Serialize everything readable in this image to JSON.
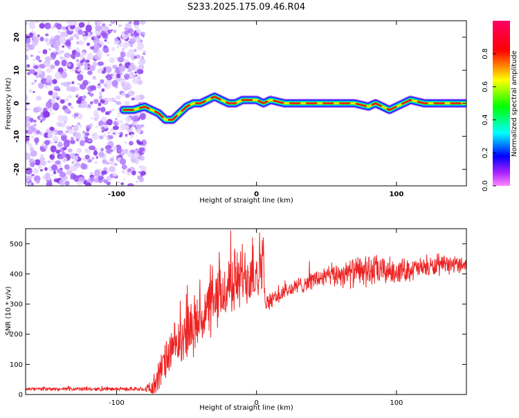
{
  "title": "S233.2025.175.09.46.R04",
  "chart_data": [
    {
      "type": "heatmap",
      "xlabel": "Height of straight line (km)",
      "ylabel": "Frequency (Hz)",
      "xlim": [
        -165,
        150
      ],
      "ylim": [
        -25,
        25
      ],
      "xticks": [
        -100,
        0,
        100
      ],
      "yticks": [
        -20,
        -10,
        0,
        10,
        20
      ],
      "colorbar": {
        "label": "Normalized spectral amplitude",
        "range": [
          0,
          1
        ],
        "ticks": [
          0.0,
          0.2,
          0.4,
          0.6,
          0.8
        ],
        "colors": [
          "#ff00ff",
          "#0000ff",
          "#00ffff",
          "#00ff00",
          "#ffff00",
          "#ff0000",
          "#ff0066"
        ]
      },
      "noise_region_x": [
        -165,
        -80
      ],
      "carrier_track": {
        "x": [
          -95,
          -88,
          -80,
          -75,
          -70,
          -65,
          -60,
          -55,
          -50,
          -45,
          -40,
          -35,
          -30,
          -25,
          -20,
          -15,
          -10,
          -5,
          0,
          5,
          10,
          20,
          30,
          40,
          50,
          60,
          70,
          80,
          85,
          90,
          95,
          100,
          105,
          110,
          120,
          130,
          140,
          150
        ],
        "y": [
          -2,
          -2,
          -1,
          -2,
          -3,
          -5,
          -5,
          -3,
          -1,
          0,
          0,
          1,
          2,
          1,
          0,
          0,
          1,
          1,
          1,
          0,
          1,
          0,
          0,
          0,
          0,
          0,
          0,
          -1,
          0,
          -1,
          -2,
          -1,
          0,
          1,
          0,
          0,
          0,
          0
        ]
      }
    },
    {
      "type": "line",
      "xlabel": "Height of straight line (km)",
      "ylabel": "SNR (10 * v/v)",
      "xlim": [
        -165,
        150
      ],
      "ylim": [
        0,
        550
      ],
      "xticks": [
        -100,
        0,
        100
      ],
      "yticks": [
        0,
        100,
        200,
        300,
        400,
        500
      ],
      "series_color": "#ee2222",
      "envelope": {
        "x": [
          -165,
          -140,
          -110,
          -85,
          -75,
          -70,
          -65,
          -60,
          -55,
          -50,
          -45,
          -40,
          -35,
          -30,
          -25,
          -20,
          -15,
          -10,
          -5,
          0,
          5,
          6,
          10,
          20,
          30,
          40,
          50,
          60,
          70,
          80,
          90,
          100,
          110,
          120,
          130,
          140,
          150
        ],
        "y": [
          18,
          18,
          18,
          18,
          20,
          60,
          110,
          150,
          170,
          200,
          230,
          250,
          280,
          300,
          330,
          360,
          380,
          390,
          400,
          420,
          440,
          300,
          310,
          340,
          360,
          380,
          390,
          400,
          405,
          410,
          410,
          410,
          415,
          420,
          425,
          430,
          435
        ]
      },
      "noise": {
        "x": [
          -165,
          -80,
          -70,
          -50,
          -10,
          5,
          6,
          40,
          80,
          100,
          150
        ],
        "amp": [
          6,
          6,
          55,
          90,
          110,
          110,
          25,
          30,
          55,
          40,
          25
        ]
      }
    }
  ]
}
